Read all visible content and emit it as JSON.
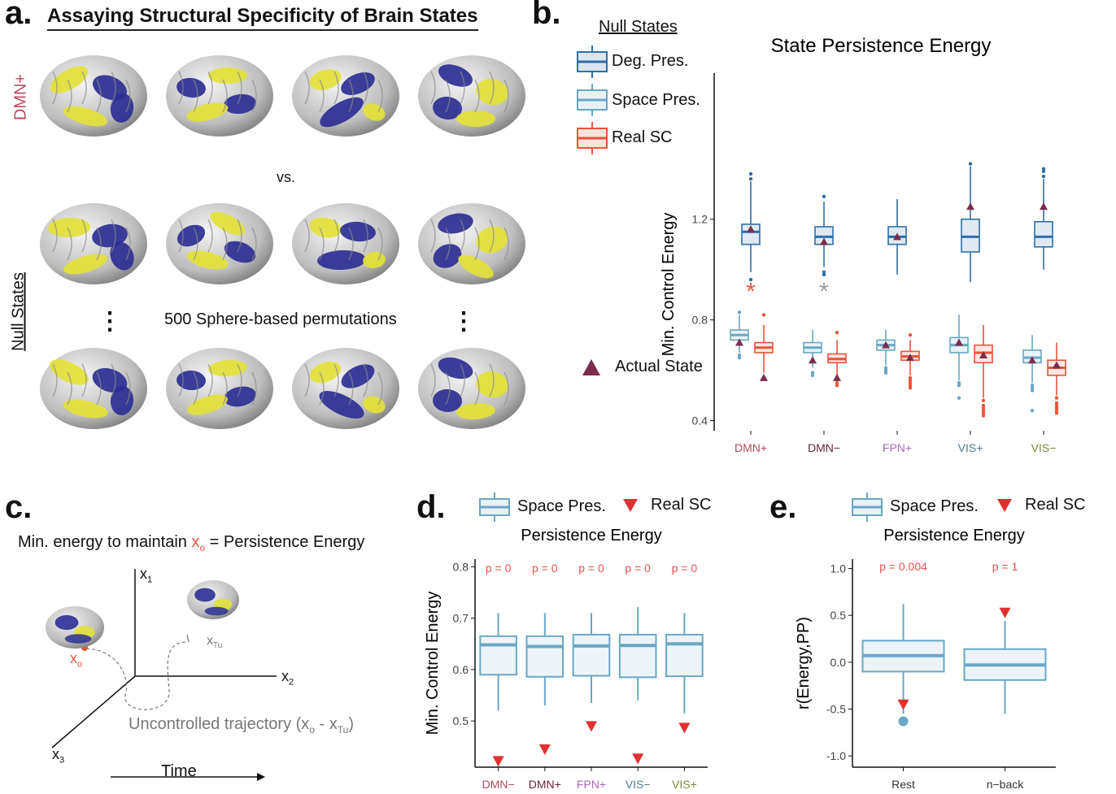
{
  "panel_a": {
    "label": "a.",
    "title": "Assaying Structural Specificity of Brain States",
    "row_label_top": "DMN+",
    "row_label_bottom": "Null States",
    "vs": "vs.",
    "dots_left": "⋮",
    "dots_right": "⋮",
    "permutations_text": "500 Sphere-based permutations"
  },
  "panel_b": {
    "label": "b.",
    "legend_title": "Null States",
    "legend_deg": "Deg. Pres.",
    "legend_space": "Space Pres.",
    "legend_real": "Real SC",
    "legend_actual": "Actual State",
    "sig_star": "*",
    "colors": {
      "deg": "#2f6ea8",
      "space": "#6aa7c4",
      "real": "#e8553a",
      "actual": "#7a2d4d",
      "gray_star": "#9e9e9e"
    }
  },
  "panel_c": {
    "label": "c.",
    "caption_pre": "Min. energy to maintain ",
    "caption_var": "x",
    "caption_sub": "o",
    "caption_post": " = Persistence Energy",
    "axis_x1": "x",
    "axis_x1_sub": "1",
    "axis_x2": "x",
    "axis_x2_sub": "2",
    "axis_x3": "x",
    "axis_x3_sub": "3",
    "xo": "x",
    "xo_sub": "o",
    "xtu": "x",
    "xtu_sub": "Tu",
    "trajectory_pre": "Uncontrolled trajectory (x",
    "trajectory_sub1": "o",
    "trajectory_mid": " - x",
    "trajectory_sub2": "Tu",
    "trajectory_post": ")",
    "time": "Time"
  },
  "panel_d": {
    "label": "d.",
    "legend_space": "Space Pres.",
    "legend_real": "Real SC"
  },
  "panel_e": {
    "label": "e.",
    "legend_space": "Space Pres.",
    "legend_real": "Real SC"
  },
  "chart_data": [
    {
      "id": "b",
      "type": "box",
      "title": "State Persistence Energy",
      "ylabel": "Min. Control Energy",
      "categories": [
        "DMN+",
        "DMN−",
        "FPN+",
        "VIS+",
        "VIS−"
      ],
      "category_colors": [
        "#b5485f",
        "#6b1f3b",
        "#a66cb4",
        "#4f7a8f",
        "#7a8b3c"
      ],
      "yticks": [
        0.4,
        0.8,
        1.2
      ],
      "ylim": [
        0.36,
        1.78
      ],
      "significance": [
        {
          "category": "DMN+",
          "mark": "*",
          "color": "#e8553a",
          "y": 0.92
        },
        {
          "category": "DMN−",
          "mark": "*",
          "color": "#9e9e9e",
          "y": 0.92
        }
      ],
      "series": [
        {
          "name": "Deg. Pres.",
          "color": "#2f6ea8",
          "boxes": [
            {
              "q1": 1.1,
              "median": 1.15,
              "q3": 1.18,
              "wlo": 0.99,
              "whi": 1.35,
              "out_hi": [
                1.36,
                1.38
              ],
              "out_lo": [
                0.96
              ]
            },
            {
              "q1": 1.1,
              "median": 1.13,
              "q3": 1.17,
              "wlo": 1.01,
              "whi": 1.27,
              "out_hi": [
                1.29
              ],
              "out_lo": [
                0.99,
                0.98
              ]
            },
            {
              "q1": 1.1,
              "median": 1.13,
              "q3": 1.17,
              "wlo": 0.98,
              "whi": 1.28,
              "out_hi": [],
              "out_lo": []
            },
            {
              "q1": 1.07,
              "median": 1.13,
              "q3": 1.2,
              "wlo": 0.95,
              "whi": 1.41,
              "out_hi": [
                1.42
              ],
              "out_lo": []
            },
            {
              "q1": 1.09,
              "median": 1.13,
              "q3": 1.19,
              "wlo": 1.0,
              "whi": 1.36,
              "out_hi": [
                1.37,
                1.39,
                1.4
              ],
              "out_lo": []
            }
          ]
        },
        {
          "name": "Space Pres.",
          "color": "#6aa7c4",
          "boxes": [
            {
              "q1": 0.72,
              "median": 0.74,
              "q3": 0.76,
              "wlo": 0.67,
              "whi": 0.82,
              "out_hi": [
                0.83
              ],
              "out_lo": [
                0.66,
                0.65
              ]
            },
            {
              "q1": 0.67,
              "median": 0.69,
              "q3": 0.71,
              "wlo": 0.61,
              "whi": 0.76,
              "out_hi": [],
              "out_lo": [
                0.59,
                0.58
              ]
            },
            {
              "q1": 0.68,
              "median": 0.7,
              "q3": 0.72,
              "wlo": 0.62,
              "whi": 0.76,
              "out_hi": [],
              "out_lo": [
                0.61,
                0.6,
                0.59
              ]
            },
            {
              "q1": 0.67,
              "median": 0.7,
              "q3": 0.73,
              "wlo": 0.56,
              "whi": 0.82,
              "out_hi": [],
              "out_lo": [
                0.55,
                0.54,
                0.49
              ]
            },
            {
              "q1": 0.63,
              "median": 0.65,
              "q3": 0.68,
              "wlo": 0.55,
              "whi": 0.74,
              "out_hi": [],
              "out_lo": [
                0.54,
                0.53,
                0.52,
                0.44
              ]
            }
          ]
        },
        {
          "name": "Real SC",
          "color": "#e8553a",
          "boxes": [
            {
              "q1": 0.67,
              "median": 0.69,
              "q3": 0.71,
              "wlo": 0.59,
              "whi": 0.78,
              "out_hi": [
                0.82
              ],
              "out_lo": []
            },
            {
              "q1": 0.63,
              "median": 0.645,
              "q3": 0.665,
              "wlo": 0.57,
              "whi": 0.72,
              "out_hi": [
                0.75
              ],
              "out_lo": [
                0.55,
                0.54
              ]
            },
            {
              "q1": 0.64,
              "median": 0.655,
              "q3": 0.675,
              "wlo": 0.58,
              "whi": 0.72,
              "out_hi": [
                0.74
              ],
              "out_lo": [
                0.57,
                0.56,
                0.55,
                0.54,
                0.53
              ]
            },
            {
              "q1": 0.63,
              "median": 0.67,
              "q3": 0.7,
              "wlo": 0.49,
              "whi": 0.78,
              "out_hi": [],
              "out_lo": [
                0.48,
                0.46,
                0.45,
                0.44,
                0.43,
                0.42
              ]
            },
            {
              "q1": 0.58,
              "median": 0.61,
              "q3": 0.64,
              "wlo": 0.5,
              "whi": 0.71,
              "out_hi": [],
              "out_lo": [
                0.49,
                0.47,
                0.46,
                0.45,
                0.44,
                0.43
              ]
            }
          ]
        }
      ],
      "actual_state": {
        "name": "Actual State",
        "values": [
          [
            1.16,
            0.71,
            0.57
          ],
          [
            1.11,
            0.64,
            0.57
          ],
          [
            1.13,
            0.7,
            0.65
          ],
          [
            1.25,
            0.71,
            0.66
          ],
          [
            1.25,
            0.64,
            0.62
          ]
        ]
      }
    },
    {
      "id": "d",
      "type": "box",
      "title": "Persistence Energy",
      "ylabel": "Min. Control Energy",
      "categories": [
        "DMN−",
        "DMN+",
        "FPN+",
        "VIS−",
        "VIS+"
      ],
      "category_colors": [
        "#b5485f",
        "#6b1f3b",
        "#a66cb4",
        "#4f7a8f",
        "#7a8b3c"
      ],
      "yticks": [
        0.5,
        0.6,
        0.7,
        0.8
      ],
      "ylim": [
        0.41,
        0.815
      ],
      "pvalues": [
        "p = 0",
        "p = 0",
        "p = 0",
        "p = 0",
        "p = 0"
      ],
      "pvalue_y": 0.79,
      "series": [
        {
          "name": "Space Pres.",
          "color": "#6aa7c4",
          "boxes": [
            {
              "q1": 0.59,
              "median": 0.648,
              "q3": 0.665,
              "wlo": 0.52,
              "whi": 0.71
            },
            {
              "q1": 0.586,
              "median": 0.645,
              "q3": 0.665,
              "wlo": 0.53,
              "whi": 0.71
            },
            {
              "q1": 0.588,
              "median": 0.646,
              "q3": 0.668,
              "wlo": 0.535,
              "whi": 0.71
            },
            {
              "q1": 0.585,
              "median": 0.647,
              "q3": 0.668,
              "wlo": 0.54,
              "whi": 0.722
            },
            {
              "q1": 0.587,
              "median": 0.65,
              "q3": 0.668,
              "wlo": 0.515,
              "whi": 0.71
            }
          ]
        }
      ],
      "real_sc": {
        "name": "Real SC",
        "color": "#e03030",
        "values": [
          0.422,
          0.445,
          0.49,
          0.427,
          0.487
        ]
      }
    },
    {
      "id": "e",
      "type": "box",
      "title": "Persistence Energy",
      "ylabel": "r(Energy,PP)",
      "categories": [
        "Rest",
        "n−back"
      ],
      "category_colors": [
        "#333333",
        "#333333"
      ],
      "yticks": [
        -1.0,
        -0.5,
        0.0,
        0.5,
        1.0
      ],
      "ylim": [
        -1.12,
        1.1
      ],
      "pvalues": [
        "p = 0.004",
        "p = 1"
      ],
      "pvalue_y": 0.98,
      "series": [
        {
          "name": "Space Pres.",
          "color": "#6aa7c4",
          "boxes": [
            {
              "q1": -0.1,
              "median": 0.07,
              "q3": 0.23,
              "wlo": -0.55,
              "whi": 0.62,
              "out_lo": [
                -0.63
              ],
              "out_hi": []
            },
            {
              "q1": -0.19,
              "median": -0.03,
              "q3": 0.14,
              "wlo": -0.55,
              "whi": 0.44,
              "out_lo": [],
              "out_hi": []
            }
          ]
        }
      ],
      "real_sc": {
        "name": "Real SC",
        "color": "#e03030",
        "values": [
          -0.45,
          0.53
        ]
      }
    }
  ]
}
